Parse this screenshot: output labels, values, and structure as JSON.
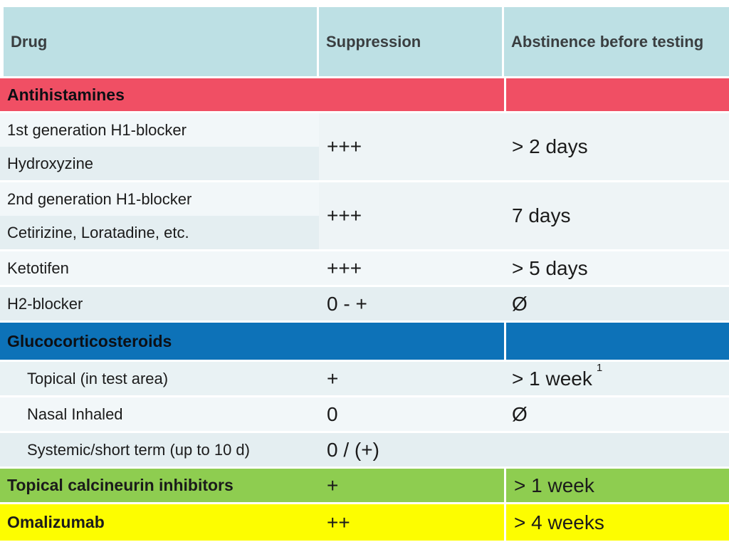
{
  "header": {
    "drug": "Drug",
    "suppression": "Suppression",
    "abstinence": "Abstinence before testing"
  },
  "sections": {
    "antihistamines": {
      "label": "Antihistamines"
    },
    "glucocorticosteroids": {
      "label": "Glucocorticosteroids"
    }
  },
  "groups": [
    {
      "rows": [
        "1st generation H1-blocker",
        "Hydroxyzine"
      ],
      "suppression": "+++",
      "abstinence": "> 2 days"
    },
    {
      "rows": [
        "2nd generation H1-blocker",
        "Cetirizine, Loratadine, etc."
      ],
      "suppression": "+++",
      "abstinence": "7 days"
    }
  ],
  "rows": [
    {
      "drug": "Ketotifen",
      "suppression": "+++",
      "abstinence": "> 5 days"
    },
    {
      "drug": "H2-blocker",
      "suppression": "0 - +",
      "abstinence": "Ø"
    },
    {
      "drug": "Topical (in test area)",
      "suppression": "+",
      "abstinence": "> 1 week",
      "abstinence_note": "1"
    },
    {
      "drug": "Nasal Inhaled",
      "suppression": "0",
      "abstinence": "Ø"
    },
    {
      "drug": "Systemic/short term (up to 10 d)",
      "suppression": "0 / (+)",
      "abstinence": ""
    }
  ],
  "footer_rows": [
    {
      "drug": "Topical calcineurin inhibitors",
      "suppression": "+",
      "abstinence": "> 1 week"
    },
    {
      "drug": "Omalizumab",
      "suppression": "++",
      "abstinence": "> 4 weeks"
    }
  ],
  "chart_data": {
    "type": "table",
    "columns": [
      "Drug",
      "Suppression",
      "Abstinence before testing"
    ],
    "rows": [
      [
        "Antihistamines",
        "",
        ""
      ],
      [
        "1st generation H1-blocker / Hydroxyzine",
        "+++",
        "> 2 days"
      ],
      [
        "2nd generation H1-blocker / Cetirizine, Loratadine, etc.",
        "+++",
        "7 days"
      ],
      [
        "Ketotifen",
        "+++",
        "> 5 days"
      ],
      [
        "H2-blocker",
        "0 - +",
        "Ø"
      ],
      [
        "Glucocorticosteroids",
        "",
        ""
      ],
      [
        "Topical (in test area)",
        "+",
        "> 1 week 1"
      ],
      [
        "Nasal Inhaled",
        "0",
        "Ø"
      ],
      [
        "Systemic/short term (up to 10 d)",
        "0 / (+)",
        ""
      ],
      [
        "Topical calcineurin inhibitors",
        "+",
        "> 1 week"
      ],
      [
        "Omalizumab",
        "++",
        "> 4 weeks"
      ]
    ]
  },
  "colors": {
    "page-bg": "#ffffff",
    "header-bg": "#bde0e4",
    "header-text": "#3a3e40",
    "text": "#1b1b1b",
    "section-text": "#0d0f14",
    "red": "#f04f64",
    "blue": "#0d72b8",
    "green": "#8ecd50",
    "yellow": "#fdfd00",
    "row-light": "#f2f7f9",
    "row-dark": "#e4eef1",
    "row-medium": "#e9f2f4",
    "merged-bg": "#eef4f6"
  }
}
